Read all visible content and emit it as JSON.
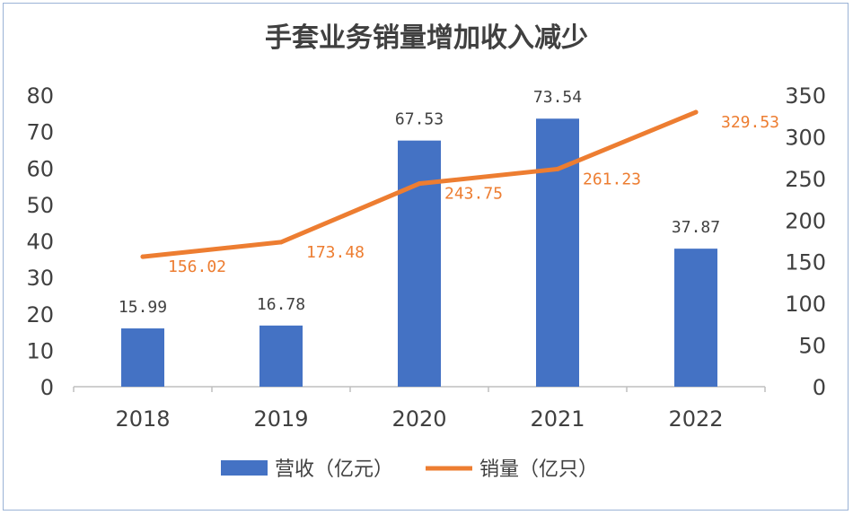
{
  "chart_data": {
    "type": "bar",
    "title": "手套业务销量增加收入减少",
    "categories": [
      "2018",
      "2019",
      "2020",
      "2021",
      "2022"
    ],
    "series": [
      {
        "name": "营收（亿元）",
        "type": "bar",
        "axis": "left",
        "color": "#4472c4",
        "values": [
          15.99,
          16.78,
          67.53,
          73.54,
          37.87
        ],
        "labels": [
          "15.99",
          "16.78",
          "67.53",
          "73.54",
          "37.87"
        ]
      },
      {
        "name": "销量（亿只）",
        "type": "line",
        "axis": "right",
        "color": "#ed7d31",
        "values": [
          156.02,
          173.48,
          243.75,
          261.23,
          329.53
        ],
        "labels": [
          "156.02",
          "173.48",
          "243.75",
          "261.23",
          "329.53"
        ]
      }
    ],
    "y_left": {
      "min": 0,
      "max": 80,
      "ticks": [
        "0",
        "10",
        "20",
        "30",
        "40",
        "50",
        "60",
        "70",
        "80"
      ]
    },
    "y_right": {
      "min": 0,
      "max": 350,
      "ticks": [
        "0",
        "50",
        "100",
        "150",
        "200",
        "250",
        "300",
        "350"
      ]
    },
    "grid": false,
    "legend_position": "bottom"
  }
}
